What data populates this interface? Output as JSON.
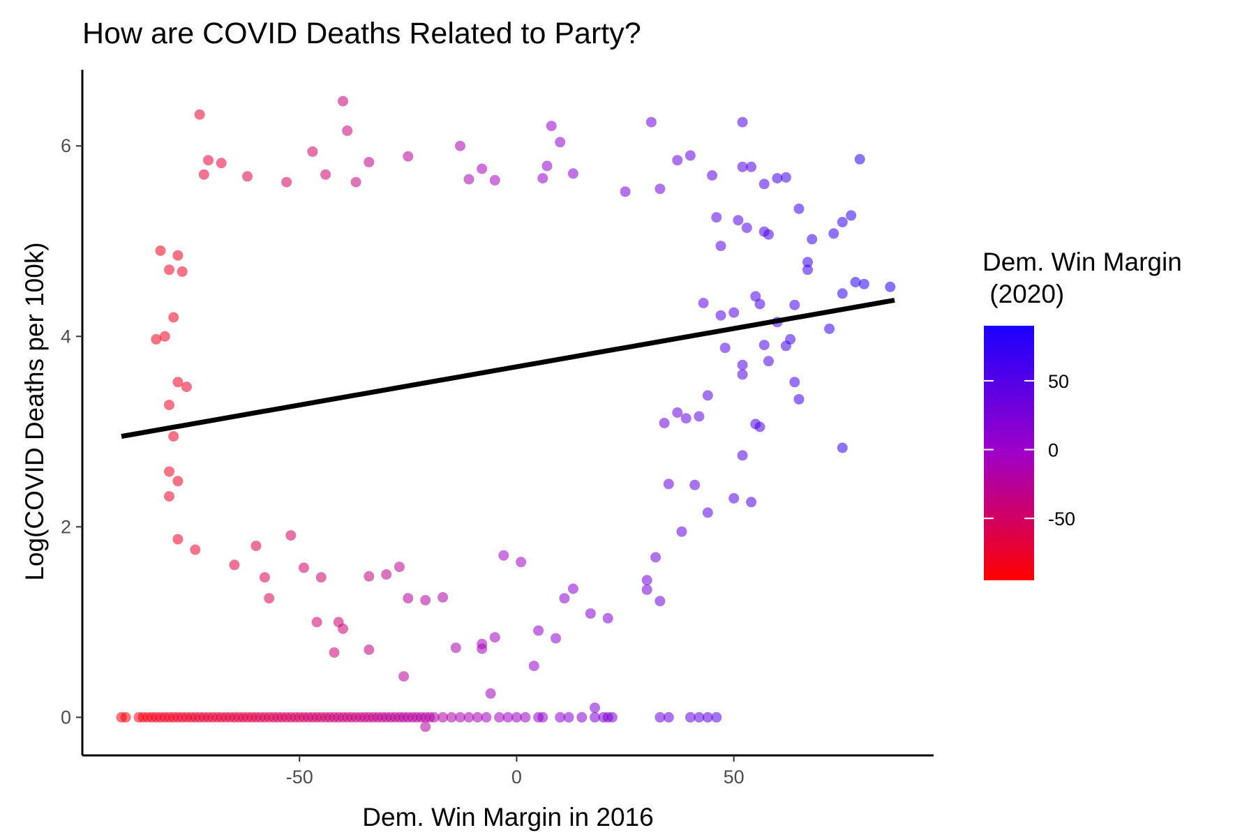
{
  "chart_data": {
    "type": "scatter",
    "title": "How are COVID Deaths Related to Party?",
    "xlabel": "Dem. Win Margin in 2016",
    "ylabel": "Log(COVID Deaths per 100k)",
    "xlim": [
      -100,
      96
    ],
    "ylim": [
      -0.4,
      6.8
    ],
    "x_ticks": [
      -50,
      0,
      50
    ],
    "x_tick_labels": [
      "-50",
      "0",
      "50"
    ],
    "y_ticks": [
      0,
      2,
      4,
      6
    ],
    "y_tick_labels": [
      "0",
      "2",
      "4",
      "6"
    ],
    "grid": false,
    "point_alpha": 0.55,
    "fit_line": {
      "x": [
        -91,
        87
      ],
      "y": [
        2.95,
        4.38
      ],
      "color": "#000000"
    },
    "legend": {
      "title_lines": [
        "Dem. Win Margin",
        " (2020)"
      ],
      "position": "right",
      "scale": "continuous",
      "range": [
        -95,
        90
      ],
      "ticks": [
        50,
        0,
        -50
      ],
      "tick_labels": [
        "50",
        "0",
        "-50"
      ],
      "low_color": "#ff0000",
      "high_color": "#1a00ff"
    },
    "series": [
      {
        "values": [
          [
            -73,
            6.33
          ],
          [
            -40,
            6.47
          ],
          [
            -39,
            6.16
          ],
          [
            8,
            6.21
          ],
          [
            31,
            6.25
          ],
          [
            52,
            6.25
          ],
          [
            10,
            6.04
          ],
          [
            -13,
            6.0
          ],
          [
            -71,
            5.85
          ],
          [
            -68,
            5.82
          ],
          [
            -47,
            5.94
          ],
          [
            -34,
            5.83
          ],
          [
            -25,
            5.89
          ],
          [
            -8,
            5.76
          ],
          [
            7,
            5.79
          ],
          [
            13,
            5.71
          ],
          [
            37,
            5.85
          ],
          [
            40,
            5.9
          ],
          [
            79,
            5.86
          ],
          [
            54,
            5.78
          ],
          [
            52,
            5.78
          ],
          [
            60,
            5.66
          ],
          [
            45,
            5.69
          ],
          [
            -72,
            5.7
          ],
          [
            -62,
            5.68
          ],
          [
            -53,
            5.62
          ],
          [
            -44,
            5.7
          ],
          [
            -37,
            5.62
          ],
          [
            -11,
            5.65
          ],
          [
            -5,
            5.64
          ],
          [
            6,
            5.66
          ],
          [
            25,
            5.52
          ],
          [
            33,
            5.55
          ],
          [
            57,
            5.6
          ],
          [
            62,
            5.67
          ],
          [
            -82,
            4.9
          ],
          [
            -78,
            4.85
          ],
          [
            -77,
            4.68
          ],
          [
            -80,
            4.7
          ],
          [
            -83,
            3.97
          ],
          [
            -81,
            4.0
          ],
          [
            -79,
            4.2
          ],
          [
            -80,
            3.28
          ],
          [
            -79,
            2.95
          ],
          [
            -78,
            2.48
          ],
          [
            -80,
            2.58
          ],
          [
            -78,
            1.87
          ],
          [
            -74,
            1.76
          ],
          [
            -80,
            2.32
          ],
          [
            -78,
            3.52
          ],
          [
            -76,
            3.47
          ],
          [
            -60,
            1.8
          ],
          [
            -65,
            1.6
          ],
          [
            -58,
            1.47
          ],
          [
            -57,
            1.25
          ],
          [
            -52,
            1.91
          ],
          [
            -49,
            1.57
          ],
          [
            -45,
            1.47
          ],
          [
            -46,
            1.0
          ],
          [
            -41,
            1.0
          ],
          [
            -40,
            0.93
          ],
          [
            -42,
            0.68
          ],
          [
            -34,
            1.48
          ],
          [
            -30,
            1.5
          ],
          [
            -34,
            0.71
          ],
          [
            -27,
            1.58
          ],
          [
            -25,
            1.25
          ],
          [
            -26,
            0.43
          ],
          [
            -21,
            1.23
          ],
          [
            -17,
            1.26
          ],
          [
            -14,
            0.73
          ],
          [
            -8,
            0.72
          ],
          [
            -8,
            0.77
          ],
          [
            -5,
            0.84
          ],
          [
            -6,
            0.25
          ],
          [
            -3,
            1.7
          ],
          [
            1,
            1.63
          ],
          [
            5,
            0.91
          ],
          [
            4,
            0.54
          ],
          [
            9,
            0.83
          ],
          [
            17,
            1.09
          ],
          [
            21,
            1.04
          ],
          [
            30,
            1.34
          ],
          [
            33,
            1.22
          ],
          [
            38,
            1.95
          ],
          [
            41,
            2.44
          ],
          [
            35,
            2.45
          ],
          [
            30,
            1.44
          ],
          [
            32,
            1.68
          ],
          [
            13,
            1.35
          ],
          [
            11,
            1.25
          ],
          [
            43,
            4.35
          ],
          [
            47,
            4.22
          ],
          [
            50,
            4.25
          ],
          [
            48,
            3.88
          ],
          [
            52,
            3.6
          ],
          [
            52,
            3.7
          ],
          [
            55,
            4.42
          ],
          [
            56,
            4.34
          ],
          [
            58,
            3.74
          ],
          [
            57,
            3.91
          ],
          [
            60,
            4.15
          ],
          [
            62,
            3.9
          ],
          [
            63,
            3.97
          ],
          [
            64,
            4.33
          ],
          [
            64,
            3.52
          ],
          [
            65,
            3.34
          ],
          [
            67,
            4.78
          ],
          [
            67,
            4.7
          ],
          [
            72,
            4.08
          ],
          [
            75,
            4.45
          ],
          [
            78,
            4.57
          ],
          [
            80,
            4.55
          ],
          [
            86,
            4.52
          ],
          [
            75,
            2.83
          ],
          [
            75,
            5.2
          ],
          [
            77,
            5.27
          ],
          [
            73,
            5.08
          ],
          [
            68,
            5.02
          ],
          [
            65,
            5.34
          ],
          [
            57,
            5.1
          ],
          [
            58,
            5.07
          ],
          [
            53,
            5.14
          ],
          [
            51,
            5.22
          ],
          [
            46,
            5.25
          ],
          [
            47,
            4.95
          ],
          [
            44,
            3.38
          ],
          [
            42,
            3.16
          ],
          [
            39,
            3.14
          ],
          [
            37,
            3.2
          ],
          [
            34,
            3.09
          ],
          [
            55,
            3.08
          ],
          [
            56,
            3.05
          ],
          [
            54,
            2.26
          ],
          [
            52,
            2.75
          ],
          [
            50,
            2.3
          ],
          [
            44,
            2.15
          ],
          [
            -91,
            0
          ],
          [
            -90,
            0
          ],
          [
            -87,
            0
          ],
          [
            -86,
            0
          ],
          [
            -85,
            0
          ],
          [
            -84,
            0
          ],
          [
            -83,
            0
          ],
          [
            -82,
            0
          ],
          [
            -81,
            0
          ],
          [
            -80,
            0
          ],
          [
            -79,
            0
          ],
          [
            -78,
            0
          ],
          [
            -77,
            0
          ],
          [
            -76,
            0
          ],
          [
            -75,
            0
          ],
          [
            -74,
            0
          ],
          [
            -73,
            0
          ],
          [
            -72,
            0
          ],
          [
            -71,
            0
          ],
          [
            -70,
            0
          ],
          [
            -69,
            0
          ],
          [
            -68,
            0
          ],
          [
            -67,
            0
          ],
          [
            -66,
            0
          ],
          [
            -65,
            0
          ],
          [
            -64,
            0
          ],
          [
            -63,
            0
          ],
          [
            -62,
            0
          ],
          [
            -61,
            0
          ],
          [
            -60,
            0
          ],
          [
            -59,
            0
          ],
          [
            -58,
            0
          ],
          [
            -57,
            0
          ],
          [
            -56,
            0
          ],
          [
            -55,
            0
          ],
          [
            -54,
            0
          ],
          [
            -53,
            0
          ],
          [
            -52,
            0
          ],
          [
            -51,
            0
          ],
          [
            -50,
            0
          ],
          [
            -49,
            0
          ],
          [
            -48,
            0
          ],
          [
            -47,
            0
          ],
          [
            -46,
            0
          ],
          [
            -45,
            0
          ],
          [
            -44,
            0
          ],
          [
            -43,
            0
          ],
          [
            -42,
            0
          ],
          [
            -41,
            0
          ],
          [
            -40,
            0
          ],
          [
            -39,
            0
          ],
          [
            -38,
            0
          ],
          [
            -37,
            0
          ],
          [
            -36,
            0
          ],
          [
            -35,
            0
          ],
          [
            -34,
            0
          ],
          [
            -33,
            0
          ],
          [
            -32,
            0
          ],
          [
            -31,
            0
          ],
          [
            -30,
            0
          ],
          [
            -29,
            0
          ],
          [
            -28,
            0
          ],
          [
            -27,
            0
          ],
          [
            -26,
            0
          ],
          [
            -25,
            0
          ],
          [
            -24,
            0
          ],
          [
            -23,
            0
          ],
          [
            -22,
            0
          ],
          [
            -21,
            0
          ],
          [
            -20,
            0
          ],
          [
            -19,
            0
          ],
          [
            -17,
            0
          ],
          [
            -15,
            0
          ],
          [
            -13,
            0
          ],
          [
            -11,
            0
          ],
          [
            -9,
            0
          ],
          [
            -7,
            0
          ],
          [
            -4,
            0
          ],
          [
            -2,
            0
          ],
          [
            0,
            0
          ],
          [
            2,
            0
          ],
          [
            5,
            0
          ],
          [
            6,
            0
          ],
          [
            10,
            0
          ],
          [
            12,
            0
          ],
          [
            15,
            0
          ],
          [
            18,
            0
          ],
          [
            20,
            0
          ],
          [
            21,
            0
          ],
          [
            22,
            0
          ],
          [
            33,
            0
          ],
          [
            35,
            0
          ],
          [
            40,
            0
          ],
          [
            42,
            0
          ],
          [
            44,
            0
          ],
          [
            46,
            0
          ],
          [
            18,
            0.1
          ],
          [
            -21,
            -0.1
          ]
        ]
      }
    ],
    "dense_cloud_note": ""
  }
}
